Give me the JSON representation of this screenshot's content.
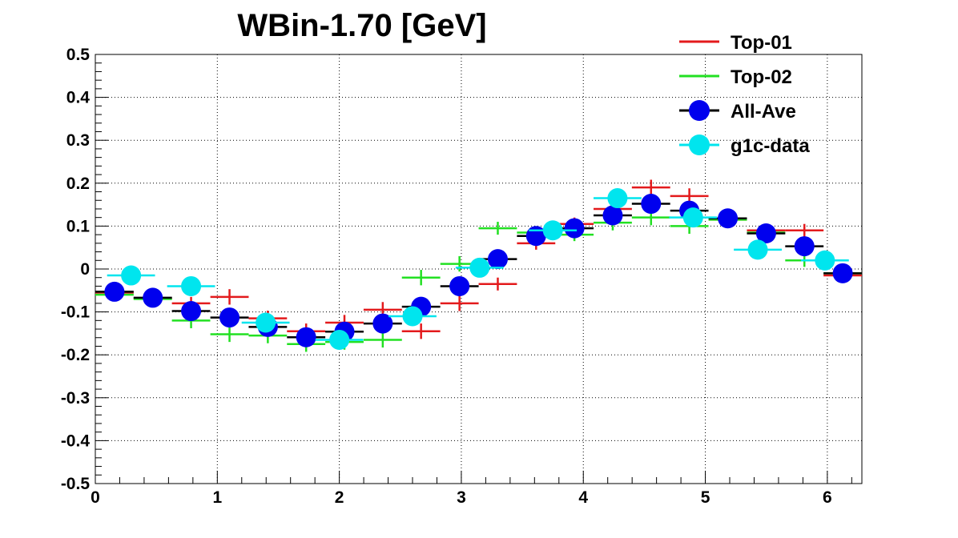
{
  "chart_data": {
    "type": "scatter",
    "title": "WBin-1.70 [GeV]",
    "xlabel": "",
    "ylabel": "",
    "xlim": [
      0,
      6.2832
    ],
    "ylim": [
      -0.5,
      0.5
    ],
    "grid": true,
    "legend_position": "top-right",
    "x_ticks": [
      0,
      1,
      2,
      3,
      4,
      5,
      6
    ],
    "x_tick_labels": [
      "0",
      "1",
      "2",
      "3",
      "4",
      "5",
      "6"
    ],
    "y_ticks": [
      -0.5,
      -0.4,
      -0.3,
      -0.2,
      -0.1,
      0,
      0.1,
      0.2,
      0.3,
      0.4,
      0.5
    ],
    "y_tick_labels": [
      "-0.5",
      "-0.4",
      "-0.3",
      "-0.2",
      "-0.1",
      "0",
      "0.1",
      "0.2",
      "0.3",
      "0.4",
      "0.5"
    ],
    "series": [
      {
        "name": "Top-01",
        "color": "#e31a1c",
        "marker": "errorbar",
        "bin_width": 0.3142,
        "x": [
          0.157,
          0.471,
          0.785,
          1.1,
          1.414,
          1.728,
          2.042,
          2.356,
          2.67,
          2.985,
          3.299,
          3.613,
          3.927,
          4.241,
          4.555,
          4.869,
          5.184,
          5.498,
          5.812,
          6.126
        ],
        "y": [
          -0.055,
          -0.068,
          -0.08,
          -0.065,
          -0.115,
          -0.145,
          -0.125,
          -0.095,
          -0.145,
          -0.08,
          -0.035,
          0.06,
          0.105,
          0.14,
          0.19,
          0.17,
          0.115,
          0.09,
          0.09,
          -0.015
        ],
        "err": [
          0.01,
          0.01,
          0.015,
          0.018,
          0.018,
          0.018,
          0.018,
          0.018,
          0.018,
          0.018,
          0.015,
          0.015,
          0.015,
          0.018,
          0.018,
          0.018,
          0.015,
          0.015,
          0.015,
          0.01
        ]
      },
      {
        "name": "Top-02",
        "color": "#22e022",
        "marker": "errorbar",
        "bin_width": 0.3142,
        "x": [
          0.157,
          0.471,
          0.785,
          1.1,
          1.414,
          1.728,
          2.042,
          2.356,
          2.67,
          2.985,
          3.299,
          3.613,
          3.927,
          4.241,
          4.555,
          4.869,
          5.184,
          5.498,
          5.812,
          6.126
        ],
        "y": [
          -0.06,
          -0.07,
          -0.12,
          -0.152,
          -0.155,
          -0.175,
          -0.17,
          -0.165,
          -0.02,
          0.012,
          0.095,
          0.085,
          0.08,
          0.108,
          0.12,
          0.1,
          0.115,
          0.085,
          0.02,
          -0.01
        ],
        "err": [
          0.01,
          0.01,
          0.018,
          0.018,
          0.018,
          0.018,
          0.018,
          0.018,
          0.018,
          0.018,
          0.015,
          0.015,
          0.015,
          0.018,
          0.018,
          0.018,
          0.015,
          0.015,
          0.015,
          0.01
        ]
      },
      {
        "name": "All-Ave",
        "color": "#0000ee",
        "marker": "circle",
        "bar_color": "#000000",
        "bin_width": 0.3142,
        "x": [
          0.157,
          0.471,
          0.785,
          1.1,
          1.414,
          1.728,
          2.042,
          2.356,
          2.67,
          2.985,
          3.299,
          3.613,
          3.927,
          4.241,
          4.555,
          4.869,
          5.184,
          5.498,
          5.812,
          6.126
        ],
        "y": [
          -0.053,
          -0.067,
          -0.098,
          -0.113,
          -0.135,
          -0.159,
          -0.146,
          -0.127,
          -0.088,
          -0.04,
          0.023,
          0.077,
          0.095,
          0.125,
          0.152,
          0.136,
          0.118,
          0.083,
          0.053,
          -0.01
        ]
      },
      {
        "name": "g1c-data",
        "color": "#00e5ee",
        "marker": "circle",
        "bar_color": "#00e5ee",
        "bin_width": 0.3927,
        "x": [
          0.293,
          0.785,
          1.396,
          2.0,
          2.6,
          3.15,
          3.75,
          4.28,
          4.9,
          5.43,
          5.98
        ],
        "y": [
          -0.015,
          -0.04,
          -0.125,
          -0.165,
          -0.11,
          0.003,
          0.09,
          0.165,
          0.12,
          0.045,
          0.02
        ]
      }
    ]
  }
}
